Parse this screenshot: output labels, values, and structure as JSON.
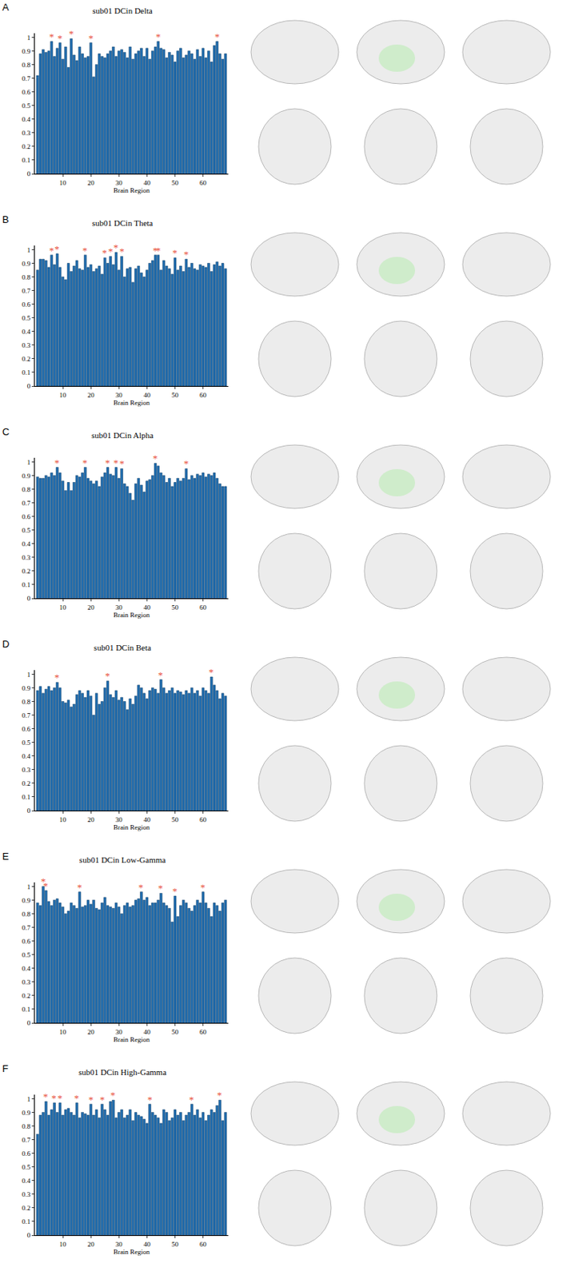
{
  "chart_data": [
    {
      "type": "bar",
      "label": "A",
      "title": "sub01 DCin Delta",
      "x_label": "Brain Region",
      "x": [
        1,
        2,
        3,
        4,
        5,
        6,
        7,
        8,
        9,
        10,
        11,
        12,
        13,
        14,
        15,
        16,
        17,
        18,
        19,
        20,
        21,
        22,
        23,
        24,
        25,
        26,
        27,
        28,
        29,
        30,
        31,
        32,
        33,
        34,
        35,
        36,
        37,
        38,
        39,
        40,
        41,
        42,
        43,
        44,
        45,
        46,
        47,
        48,
        49,
        50,
        51,
        52,
        53,
        54,
        55,
        56,
        57,
        58,
        59,
        60,
        61,
        62,
        63,
        64,
        65,
        66,
        67,
        68
      ],
      "values": [
        0.72,
        0.88,
        0.91,
        0.89,
        0.9,
        0.97,
        0.86,
        0.92,
        0.96,
        0.84,
        0.93,
        0.78,
        0.99,
        0.87,
        0.83,
        0.93,
        0.88,
        0.85,
        0.86,
        0.96,
        0.71,
        0.8,
        0.88,
        0.86,
        0.85,
        0.88,
        0.9,
        0.93,
        0.86,
        0.9,
        0.91,
        0.89,
        0.85,
        0.93,
        0.84,
        0.88,
        0.9,
        0.92,
        0.86,
        0.92,
        0.84,
        0.9,
        0.93,
        0.97,
        0.92,
        0.91,
        0.85,
        0.89,
        0.87,
        0.82,
        0.9,
        0.92,
        0.85,
        0.87,
        0.9,
        0.88,
        0.84,
        0.91,
        0.86,
        0.92,
        0.85,
        0.9,
        0.82,
        0.94,
        0.97,
        0.88,
        0.84,
        0.88
      ],
      "annotations": [
        {
          "x": 6,
          "text": "*"
        },
        {
          "x": 9,
          "text": "*"
        },
        {
          "x": 13,
          "text": "*"
        },
        {
          "x": 20,
          "text": "*"
        },
        {
          "x": 44,
          "text": "*"
        },
        {
          "x": 65,
          "text": "*"
        }
      ],
      "color": "#1f6db0",
      "xlim": [
        0,
        69
      ],
      "xticks": [
        10,
        20,
        30,
        40,
        50,
        60
      ],
      "ylim": [
        0,
        1.03
      ],
      "yticks": [
        0,
        0.1,
        0.2,
        0.3,
        0.4,
        0.5,
        0.6,
        0.7,
        0.8,
        0.9,
        1
      ],
      "grid": false
    },
    {
      "type": "bar",
      "label": "B",
      "title": "sub01 DCin Theta",
      "x_label": "Brain Region",
      "x": [
        1,
        2,
        3,
        4,
        5,
        6,
        7,
        8,
        9,
        10,
        11,
        12,
        13,
        14,
        15,
        16,
        17,
        18,
        19,
        20,
        21,
        22,
        23,
        24,
        25,
        26,
        27,
        28,
        29,
        30,
        31,
        32,
        33,
        34,
        35,
        36,
        37,
        38,
        39,
        40,
        41,
        42,
        43,
        44,
        45,
        46,
        47,
        48,
        49,
        50,
        51,
        52,
        53,
        54,
        55,
        56,
        57,
        58,
        59,
        60,
        61,
        62,
        63,
        64,
        65,
        66,
        67,
        68
      ],
      "values": [
        0.85,
        0.93,
        0.93,
        0.92,
        0.87,
        0.96,
        0.89,
        0.97,
        0.87,
        0.8,
        0.78,
        0.9,
        0.84,
        0.88,
        0.92,
        0.86,
        0.85,
        0.96,
        0.87,
        0.89,
        0.84,
        0.86,
        0.88,
        0.82,
        0.94,
        0.9,
        0.95,
        0.89,
        0.98,
        0.85,
        0.95,
        0.8,
        0.86,
        0.87,
        0.76,
        0.86,
        0.88,
        0.83,
        0.8,
        0.85,
        0.9,
        0.92,
        0.96,
        0.96,
        0.85,
        0.92,
        0.88,
        0.86,
        0.82,
        0.94,
        0.85,
        0.88,
        0.84,
        0.93,
        0.87,
        0.9,
        0.86,
        0.85,
        0.89,
        0.88,
        0.87,
        0.9,
        0.84,
        0.89,
        0.91,
        0.88,
        0.9,
        0.86
      ],
      "annotations": [
        {
          "x": 6,
          "text": "*"
        },
        {
          "x": 8,
          "text": "*"
        },
        {
          "x": 18,
          "text": "*"
        },
        {
          "x": 25,
          "text": "*"
        },
        {
          "x": 27,
          "text": "*"
        },
        {
          "x": 29,
          "text": "*"
        },
        {
          "x": 31,
          "text": "*"
        },
        {
          "x": 43,
          "text": "*"
        },
        {
          "x": 44,
          "text": "*"
        },
        {
          "x": 50,
          "text": "*"
        },
        {
          "x": 54,
          "text": "*"
        }
      ],
      "color": "#1f6db0",
      "xlim": [
        0,
        69
      ],
      "xticks": [
        10,
        20,
        30,
        40,
        50,
        60
      ],
      "ylim": [
        0,
        1.03
      ],
      "yticks": [
        0,
        0.1,
        0.2,
        0.3,
        0.4,
        0.5,
        0.6,
        0.7,
        0.8,
        0.9,
        1
      ],
      "grid": false
    },
    {
      "type": "bar",
      "label": "C",
      "title": "sub01 DCin Alpha",
      "x_label": "Brain Region",
      "x": [
        1,
        2,
        3,
        4,
        5,
        6,
        7,
        8,
        9,
        10,
        11,
        12,
        13,
        14,
        15,
        16,
        17,
        18,
        19,
        20,
        21,
        22,
        23,
        24,
        25,
        26,
        27,
        28,
        29,
        30,
        31,
        32,
        33,
        34,
        35,
        36,
        37,
        38,
        39,
        40,
        41,
        42,
        43,
        44,
        45,
        46,
        47,
        48,
        49,
        50,
        51,
        52,
        53,
        54,
        55,
        56,
        57,
        58,
        59,
        60,
        61,
        62,
        63,
        64,
        65,
        66,
        67,
        68
      ],
      "values": [
        0.89,
        0.88,
        0.88,
        0.9,
        0.89,
        0.92,
        0.9,
        0.96,
        0.92,
        0.86,
        0.79,
        0.85,
        0.79,
        0.85,
        0.9,
        0.89,
        0.92,
        0.96,
        0.88,
        0.86,
        0.84,
        0.86,
        0.82,
        0.89,
        0.92,
        0.96,
        0.91,
        0.9,
        0.96,
        0.88,
        0.95,
        0.84,
        0.82,
        0.77,
        0.72,
        0.84,
        0.88,
        0.83,
        0.78,
        0.86,
        0.87,
        0.9,
        0.99,
        0.97,
        0.92,
        0.9,
        0.85,
        0.88,
        0.82,
        0.85,
        0.88,
        0.86,
        0.88,
        0.95,
        0.87,
        0.9,
        0.88,
        0.91,
        0.9,
        0.92,
        0.89,
        0.91,
        0.9,
        0.92,
        0.88,
        0.84,
        0.82,
        0.82
      ],
      "annotations": [
        {
          "x": 8,
          "text": "*"
        },
        {
          "x": 18,
          "text": "*"
        },
        {
          "x": 26,
          "text": "*"
        },
        {
          "x": 29,
          "text": "*"
        },
        {
          "x": 31,
          "text": "*"
        },
        {
          "x": 43,
          "text": "*"
        },
        {
          "x": 54,
          "text": "*"
        }
      ],
      "color": "#1f6db0",
      "xlim": [
        0,
        69
      ],
      "xticks": [
        10,
        20,
        30,
        40,
        50,
        60
      ],
      "ylim": [
        0,
        1.03
      ],
      "yticks": [
        0,
        0.1,
        0.2,
        0.3,
        0.4,
        0.5,
        0.6,
        0.7,
        0.8,
        0.9,
        1
      ],
      "grid": false
    },
    {
      "type": "bar",
      "label": "D",
      "title": "sub01 DCin Beta",
      "x_label": "Brain Region",
      "x": [
        1,
        2,
        3,
        4,
        5,
        6,
        7,
        8,
        9,
        10,
        11,
        12,
        13,
        14,
        15,
        16,
        17,
        18,
        19,
        20,
        21,
        22,
        23,
        24,
        25,
        26,
        27,
        28,
        29,
        30,
        31,
        32,
        33,
        34,
        35,
        36,
        37,
        38,
        39,
        40,
        41,
        42,
        43,
        44,
        45,
        46,
        47,
        48,
        49,
        50,
        51,
        52,
        53,
        54,
        55,
        56,
        57,
        58,
        59,
        60,
        61,
        62,
        63,
        64,
        65,
        66,
        67,
        68
      ],
      "values": [
        0.88,
        0.91,
        0.86,
        0.89,
        0.91,
        0.88,
        0.9,
        0.94,
        0.9,
        0.8,
        0.79,
        0.81,
        0.76,
        0.78,
        0.85,
        0.88,
        0.86,
        0.83,
        0.88,
        0.84,
        0.7,
        0.86,
        0.78,
        0.8,
        0.9,
        0.95,
        0.85,
        0.83,
        0.88,
        0.81,
        0.83,
        0.8,
        0.74,
        0.82,
        0.78,
        0.84,
        0.92,
        0.9,
        0.86,
        0.82,
        0.88,
        0.9,
        0.89,
        0.86,
        0.96,
        0.9,
        0.86,
        0.88,
        0.9,
        0.86,
        0.88,
        0.87,
        0.85,
        0.88,
        0.86,
        0.9,
        0.86,
        0.88,
        0.84,
        0.9,
        0.88,
        0.86,
        0.98,
        0.92,
        0.88,
        0.82,
        0.86,
        0.84
      ],
      "annotations": [
        {
          "x": 8,
          "text": "*"
        },
        {
          "x": 26,
          "text": "*"
        },
        {
          "x": 45,
          "text": "*"
        },
        {
          "x": 63,
          "text": "*"
        }
      ],
      "color": "#1f6db0",
      "xlim": [
        0,
        69
      ],
      "xticks": [
        10,
        20,
        30,
        40,
        50,
        60
      ],
      "ylim": [
        0,
        1.03
      ],
      "yticks": [
        0,
        0.1,
        0.2,
        0.3,
        0.4,
        0.5,
        0.6,
        0.7,
        0.8,
        0.9,
        1
      ],
      "grid": false
    },
    {
      "type": "bar",
      "label": "E",
      "title": "sub01 DCin Low-Gamma",
      "x_label": "Brain Region",
      "x": [
        1,
        2,
        3,
        4,
        5,
        6,
        7,
        8,
        9,
        10,
        11,
        12,
        13,
        14,
        15,
        16,
        17,
        18,
        19,
        20,
        21,
        22,
        23,
        24,
        25,
        26,
        27,
        28,
        29,
        30,
        31,
        32,
        33,
        34,
        35,
        36,
        37,
        38,
        39,
        40,
        41,
        42,
        43,
        44,
        45,
        46,
        47,
        48,
        49,
        50,
        51,
        52,
        53,
        54,
        55,
        56,
        57,
        58,
        59,
        60,
        61,
        62,
        63,
        64,
        65,
        66,
        67,
        68
      ],
      "values": [
        0.88,
        0.86,
        1.0,
        0.97,
        0.89,
        0.86,
        0.9,
        0.91,
        0.88,
        0.85,
        0.8,
        0.82,
        0.88,
        0.86,
        0.84,
        0.96,
        0.85,
        0.86,
        0.9,
        0.87,
        0.9,
        0.84,
        0.83,
        0.88,
        0.92,
        0.86,
        0.85,
        0.84,
        0.88,
        0.85,
        0.8,
        0.86,
        0.88,
        0.85,
        0.86,
        0.9,
        0.91,
        0.96,
        0.9,
        0.92,
        0.86,
        0.88,
        0.88,
        0.9,
        0.95,
        0.88,
        0.86,
        0.84,
        0.74,
        0.93,
        0.78,
        0.86,
        0.9,
        0.88,
        0.84,
        0.82,
        0.86,
        0.9,
        0.88,
        0.96,
        0.88,
        0.84,
        0.78,
        0.88,
        0.86,
        0.82,
        0.88,
        0.9
      ],
      "annotations": [
        {
          "x": 3,
          "text": "*"
        },
        {
          "x": 4,
          "text": "*"
        },
        {
          "x": 16,
          "text": "*"
        },
        {
          "x": 38,
          "text": "*"
        },
        {
          "x": 45,
          "text": "*"
        },
        {
          "x": 50,
          "text": "*"
        },
        {
          "x": 60,
          "text": "*"
        }
      ],
      "color": "#1f6db0",
      "xlim": [
        0,
        69
      ],
      "xticks": [
        10,
        20,
        30,
        40,
        50,
        60
      ],
      "ylim": [
        0,
        1.03
      ],
      "yticks": [
        0,
        0.1,
        0.2,
        0.3,
        0.4,
        0.5,
        0.6,
        0.7,
        0.8,
        0.9,
        1
      ],
      "grid": false
    },
    {
      "type": "bar",
      "label": "F",
      "title": "sub01 DCin High-Gamma",
      "x_label": "Brain Region",
      "x": [
        1,
        2,
        3,
        4,
        5,
        6,
        7,
        8,
        9,
        10,
        11,
        12,
        13,
        14,
        15,
        16,
        17,
        18,
        19,
        20,
        21,
        22,
        23,
        24,
        25,
        26,
        27,
        28,
        29,
        30,
        31,
        32,
        33,
        34,
        35,
        36,
        37,
        38,
        39,
        40,
        41,
        42,
        43,
        44,
        45,
        46,
        47,
        48,
        49,
        50,
        51,
        52,
        53,
        54,
        55,
        56,
        57,
        58,
        59,
        60,
        61,
        62,
        63,
        64,
        65,
        66,
        67,
        68
      ],
      "values": [
        0.74,
        0.88,
        0.9,
        0.98,
        0.88,
        0.92,
        0.97,
        0.9,
        0.97,
        0.88,
        0.92,
        0.93,
        0.9,
        0.88,
        0.97,
        0.86,
        0.9,
        0.89,
        0.88,
        0.96,
        0.88,
        0.92,
        0.86,
        0.96,
        0.92,
        0.88,
        0.98,
        0.99,
        0.86,
        0.9,
        0.92,
        0.86,
        0.88,
        0.92,
        0.84,
        0.9,
        0.88,
        0.87,
        0.85,
        0.82,
        0.96,
        0.9,
        0.88,
        0.86,
        0.82,
        0.92,
        0.9,
        0.84,
        0.86,
        0.92,
        0.88,
        0.9,
        0.84,
        0.88,
        0.9,
        0.96,
        0.88,
        0.92,
        0.86,
        0.9,
        0.84,
        0.88,
        0.92,
        0.9,
        0.95,
        0.99,
        0.84,
        0.9
      ],
      "annotations": [
        {
          "x": 4,
          "text": "*"
        },
        {
          "x": 7,
          "text": "*"
        },
        {
          "x": 9,
          "text": "*"
        },
        {
          "x": 15,
          "text": "*"
        },
        {
          "x": 20,
          "text": "*"
        },
        {
          "x": 24,
          "text": "*"
        },
        {
          "x": 28,
          "text": "*"
        },
        {
          "x": 41,
          "text": "*"
        },
        {
          "x": 56,
          "text": "*"
        },
        {
          "x": 66,
          "text": "*"
        }
      ],
      "color": "#1f6db0",
      "xlim": [
        0,
        69
      ],
      "xticks": [
        10,
        20,
        30,
        40,
        50,
        60
      ],
      "ylim": [
        0,
        1.03
      ],
      "yticks": [
        0,
        0.1,
        0.2,
        0.3,
        0.4,
        0.5,
        0.6,
        0.7,
        0.8,
        0.9,
        1
      ],
      "grid": false
    }
  ]
}
